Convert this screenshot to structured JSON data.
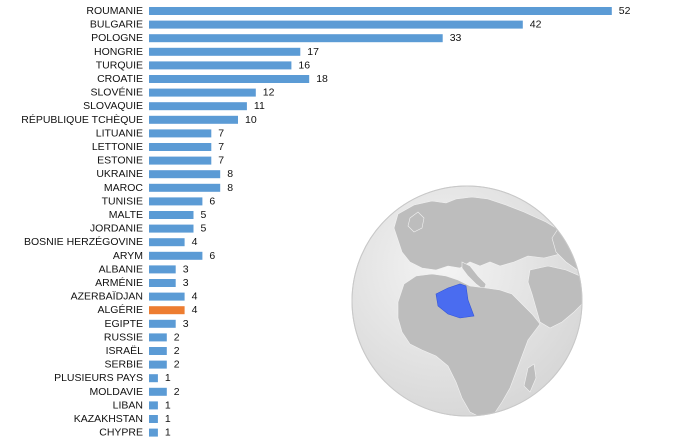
{
  "chart_data": {
    "type": "bar",
    "orientation": "horizontal",
    "categories": [
      "ROUMANIE",
      "BULGARIE",
      "POLOGNE",
      "HONGRIE",
      "TURQUIE",
      "CROATIE",
      "SLOVÉNIE",
      "SLOVAQUIE",
      "RÉPUBLIQUE TCHÈQUE",
      "LITUANIE",
      "LETTONIE",
      "ESTONIE",
      "UKRAINE",
      "MAROC",
      "TUNISIE",
      "MALTE",
      "JORDANIE",
      "BOSNIE HERZÉGOVINE",
      "ARYM",
      "ALBANIE",
      "ARMÉNIE",
      "AZERBAÏDJAN",
      "ALGÉRIE",
      "EGIPTE",
      "RUSSIE",
      "ISRAËL",
      "SERBIE",
      "PLUSIEURS PAYS",
      "MOLDAVIE",
      "LIBAN",
      "KAZAKHSTAN",
      "CHYPRE"
    ],
    "values": [
      52,
      42,
      33,
      17,
      16,
      18,
      12,
      11,
      10,
      7,
      7,
      7,
      8,
      8,
      6,
      5,
      5,
      4,
      6,
      3,
      3,
      4,
      4,
      3,
      2,
      2,
      2,
      1,
      2,
      1,
      1,
      1
    ],
    "highlight_category": "ALGÉRIE",
    "bar_color": "#5b9bd5",
    "highlight_color": "#ed7d31",
    "data_labels": true,
    "grid": false,
    "legend": "none"
  },
  "inset_map": {
    "type": "orthographic-globe",
    "highlighted_region": "Algérie",
    "highlight_color": "#4a6cf0",
    "land_color": "#bdbdbd",
    "ocean_color": "#e6e6e6"
  }
}
